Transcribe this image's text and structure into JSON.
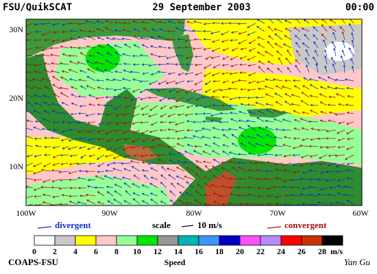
{
  "header": {
    "left": "FSU/QuikSCAT",
    "center": "29 September 2003",
    "right": "00:00"
  },
  "lat_labels": [
    "30N",
    "20N",
    "10N"
  ],
  "lon_labels": [
    "100W",
    "90W",
    "80W",
    "70W",
    "60W"
  ],
  "legend": {
    "divergent": "divergent",
    "scale": "scale",
    "scale_value": "10 m/s",
    "convergent": "convergent",
    "divergent_color": "#1030c0",
    "convergent_color": "#a01010"
  },
  "colorbar": {
    "ticks": [
      0,
      2,
      4,
      6,
      8,
      10,
      12,
      14,
      16,
      18,
      20,
      22,
      24,
      26,
      28
    ],
    "unit": "m/s",
    "title": "Speed",
    "colors": [
      "#ffffff",
      "#c8c8c8",
      "#ffff00",
      "#ffc8c8",
      "#96ff96",
      "#00e600",
      "#969696",
      "#00b4b4",
      "#3c96ff",
      "#0000c8",
      "#ff50ff",
      "#b48cff",
      "#ff0000",
      "#c83200",
      "#000000"
    ]
  },
  "footer": {
    "left": "COAPS-FSU",
    "right": "Yan Gu"
  }
}
